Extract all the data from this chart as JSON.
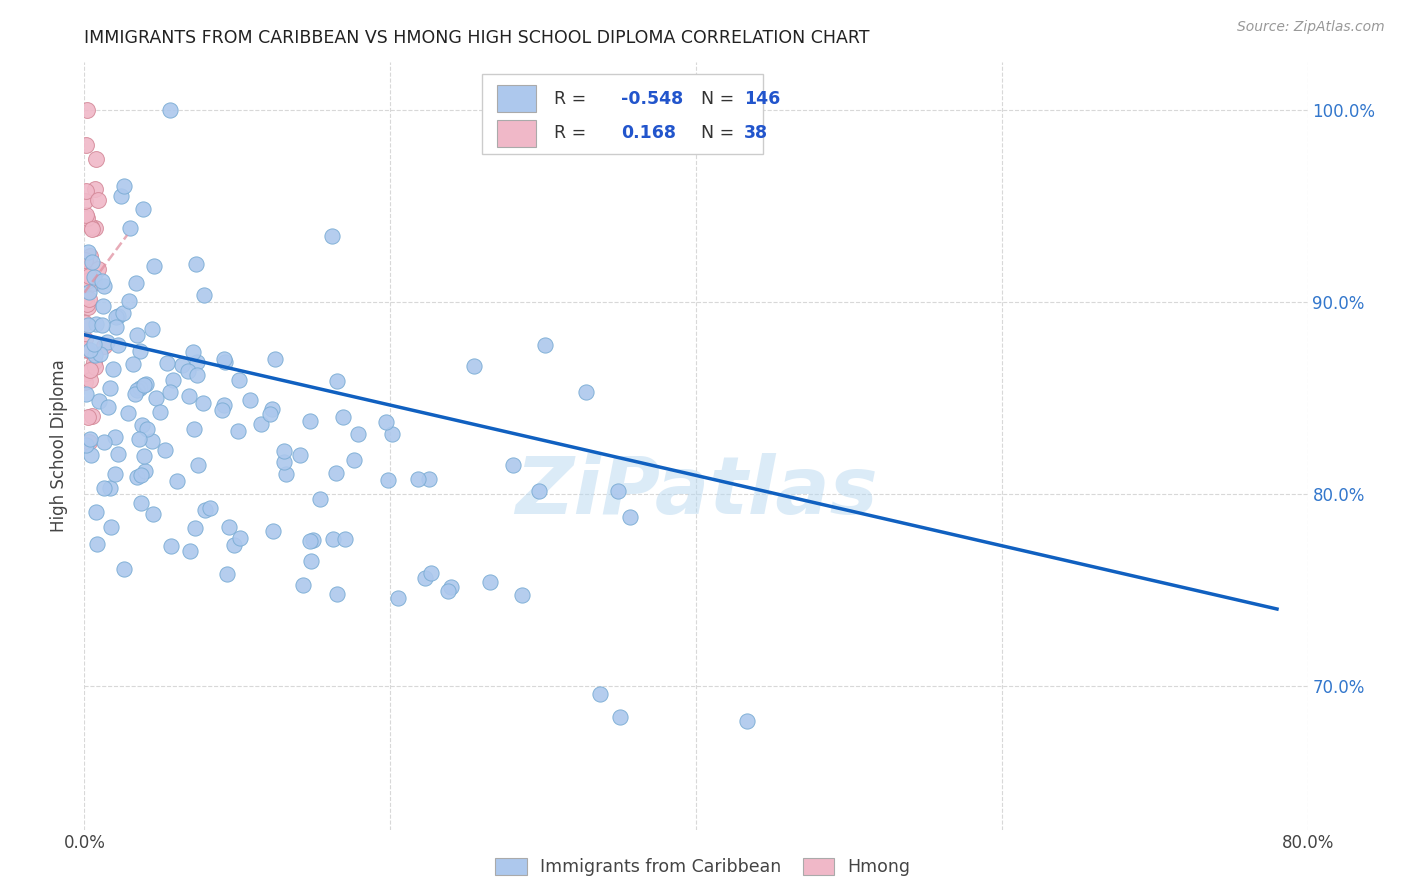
{
  "title": "IMMIGRANTS FROM CARIBBEAN VS HMONG HIGH SCHOOL DIPLOMA CORRELATION CHART",
  "source": "Source: ZipAtlas.com",
  "ylabel": "High School Diploma",
  "xlim": [
    0.0,
    0.8
  ],
  "ylim": [
    0.625,
    1.025
  ],
  "yticks": [
    0.7,
    0.8,
    0.9,
    1.0
  ],
  "ytick_labels": [
    "70.0%",
    "80.0%",
    "90.0%",
    "100.0%"
  ],
  "xticks": [
    0.0,
    0.2,
    0.4,
    0.6,
    0.8
  ],
  "xtick_labels": [
    "0.0%",
    "",
    "",
    "",
    "80.0%"
  ],
  "legend_R1": "-0.548",
  "legend_N1": "146",
  "legend_R2": "0.168",
  "legend_N2": "38",
  "blue_color": "#adc8ed",
  "blue_edge": "#7aacd4",
  "pink_color": "#f0b8c8",
  "pink_edge": "#d48898",
  "trend_blue": "#1060c0",
  "trend_pink": "#e090a0",
  "watermark": "ZiPatlas",
  "background": "#ffffff",
  "grid_color": "#d8d8d8",
  "blue_seed": 42,
  "pink_seed": 77,
  "n_blue": 146,
  "n_pink": 38,
  "blue_trend_x0": 0.0,
  "blue_trend_x1": 0.78,
  "blue_trend_y0": 0.883,
  "blue_trend_y1": 0.74,
  "pink_trend_x0": 0.0,
  "pink_trend_x1": 0.028,
  "pink_trend_y0": 0.905,
  "pink_trend_y1": 0.935
}
